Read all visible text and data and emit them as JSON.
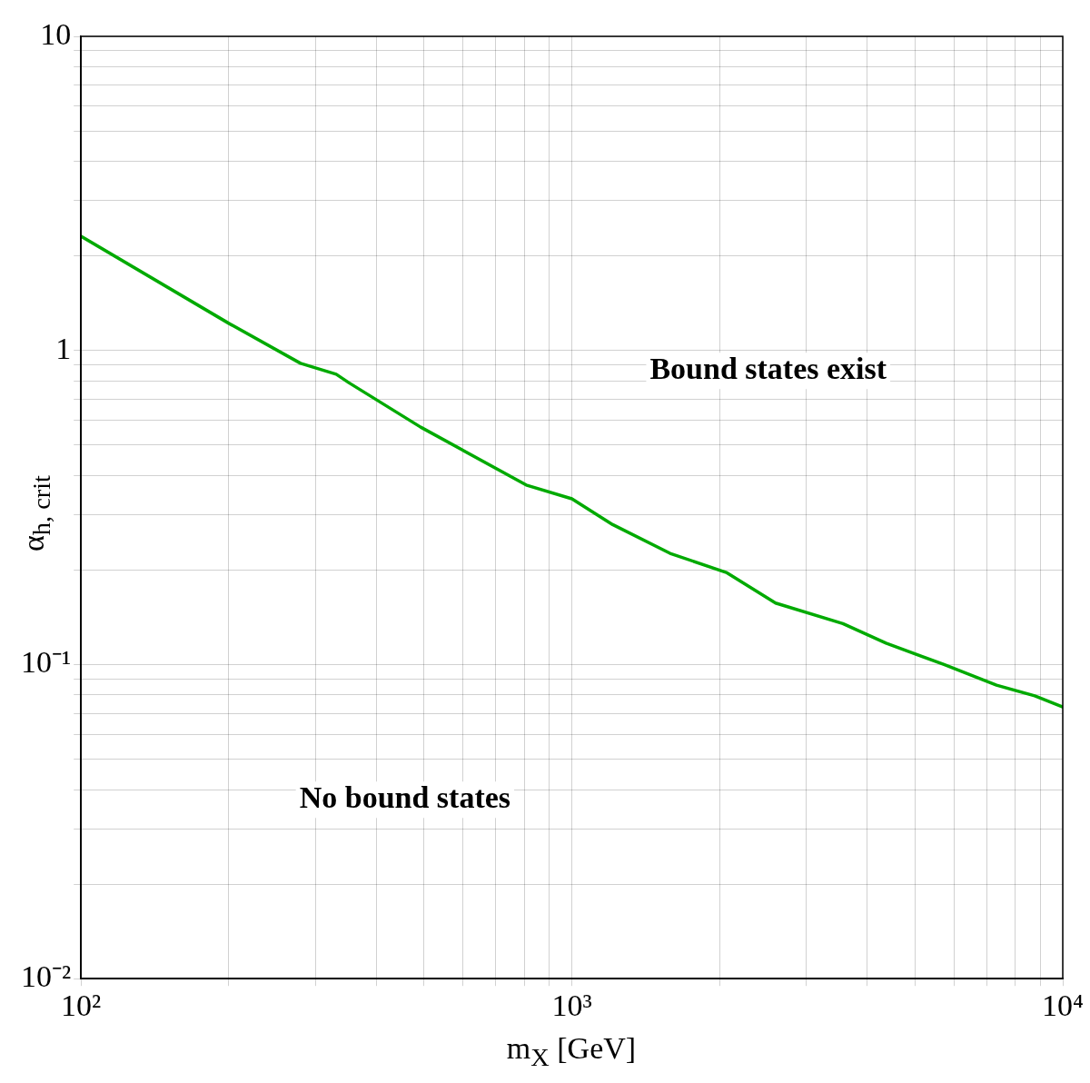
{
  "chart_data": {
    "type": "line",
    "xlabel": "m$_{X}$  [GeV]",
    "ylabel": "α$_{h, crit}$",
    "log": "xy",
    "grid": true,
    "marker": "none",
    "line_style": "solid",
    "xlim": [
      100,
      10000
    ],
    "ylim": [
      0.01,
      10
    ],
    "xticks": [
      {
        "value": 100,
        "label": "10²"
      },
      {
        "value": 200,
        "label": null
      },
      {
        "value": 300,
        "label": null
      },
      {
        "value": 400,
        "label": null
      },
      {
        "value": 500,
        "label": null
      },
      {
        "value": 600,
        "label": null
      },
      {
        "value": 700,
        "label": null
      },
      {
        "value": 800,
        "label": null
      },
      {
        "value": 900,
        "label": null
      },
      {
        "value": 1000,
        "label": "10³"
      },
      {
        "value": 2000,
        "label": null
      },
      {
        "value": 3000,
        "label": null
      },
      {
        "value": 4000,
        "label": null
      },
      {
        "value": 5000,
        "label": null
      },
      {
        "value": 6000,
        "label": null
      },
      {
        "value": 7000,
        "label": null
      },
      {
        "value": 8000,
        "label": null
      },
      {
        "value": 9000,
        "label": null
      },
      {
        "value": 10000,
        "label": "10⁴"
      }
    ],
    "yticks": [
      {
        "value": 0.01,
        "label": "10⁻²"
      },
      {
        "value": 0.02,
        "label": null
      },
      {
        "value": 0.03,
        "label": null
      },
      {
        "value": 0.04,
        "label": null
      },
      {
        "value": 0.05,
        "label": null
      },
      {
        "value": 0.06,
        "label": null
      },
      {
        "value": 0.07,
        "label": null
      },
      {
        "value": 0.08,
        "label": null
      },
      {
        "value": 0.09,
        "label": null
      },
      {
        "value": 0.1,
        "label": "10⁻¹"
      },
      {
        "value": 0.2,
        "label": null
      },
      {
        "value": 0.3,
        "label": null
      },
      {
        "value": 0.4,
        "label": null
      },
      {
        "value": 0.5,
        "label": null
      },
      {
        "value": 0.6,
        "label": null
      },
      {
        "value": 0.7,
        "label": null
      },
      {
        "value": 0.8,
        "label": null
      },
      {
        "value": 0.9,
        "label": null
      },
      1,
      {
        "value": 2,
        "label": null
      },
      {
        "value": 3,
        "label": null
      },
      {
        "value": 4,
        "label": null
      },
      {
        "value": 5,
        "label": null
      },
      {
        "value": 6,
        "label": null
      },
      {
        "value": 7,
        "label": null
      },
      {
        "value": 8,
        "label": null
      },
      {
        "value": 9,
        "label": null
      },
      10
    ],
    "x": [
      100,
      200,
      280,
      331,
      351,
      492,
      807,
      1000,
      1211,
      1585,
      2070,
      2600,
      3565,
      4365,
      5730,
      7330,
      8770,
      10000
    ],
    "series": [
      {
        "color": "#00aa00",
        "values": [
          2.31,
          1.22,
          0.91,
          0.84,
          0.79,
          0.57,
          0.373,
          0.337,
          0.279,
          0.226,
          0.196,
          0.157,
          0.135,
          0.117,
          0.1,
          0.086,
          0.0795,
          0.0733
        ]
      }
    ],
    "annotations": [
      "Bound states exist",
      "No bound states"
    ]
  }
}
